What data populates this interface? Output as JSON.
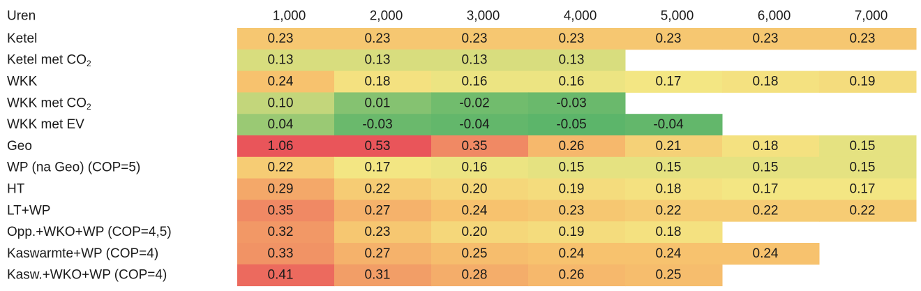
{
  "chart_data": {
    "type": "heatmap",
    "corner_label": "Uren",
    "columns": [
      "1,000",
      "2,000",
      "3,000",
      "4,000",
      "5,000",
      "6,000",
      "7,000"
    ],
    "rows": [
      {
        "label": "Ketel",
        "sub": "",
        "values": [
          "0.23",
          "0.23",
          "0.23",
          "0.23",
          "0.23",
          "0.23",
          "0.23"
        ]
      },
      {
        "label": "Ketel met CO",
        "sub": "2",
        "values": [
          "0.13",
          "0.13",
          "0.13",
          "0.13",
          null,
          null,
          null
        ]
      },
      {
        "label": "WKK",
        "sub": "",
        "values": [
          "0.24",
          "0.18",
          "0.16",
          "0.16",
          "0.17",
          "0.18",
          "0.19"
        ]
      },
      {
        "label": "WKK met CO",
        "sub": "2",
        "values": [
          "0.10",
          "0.01",
          "-0.02",
          "-0.03",
          null,
          null,
          null
        ]
      },
      {
        "label": "WKK met EV",
        "sub": "",
        "values": [
          "0.04",
          "-0.03",
          "-0.04",
          "-0.05",
          "-0.04",
          null,
          null
        ]
      },
      {
        "label": "Geo",
        "sub": "",
        "values": [
          "1.06",
          "0.53",
          "0.35",
          "0.26",
          "0.21",
          "0.18",
          "0.15"
        ]
      },
      {
        "label": "WP (na Geo)  (COP=5)",
        "sub": "",
        "values": [
          "0.22",
          "0.17",
          "0.16",
          "0.15",
          "0.15",
          "0.15",
          "0.15"
        ]
      },
      {
        "label": "HT",
        "sub": "",
        "values": [
          "0.29",
          "0.22",
          "0.20",
          "0.19",
          "0.18",
          "0.17",
          "0.17"
        ]
      },
      {
        "label": "LT+WP",
        "sub": "",
        "values": [
          "0.35",
          "0.27",
          "0.24",
          "0.23",
          "0.22",
          "0.22",
          "0.22"
        ]
      },
      {
        "label": "Opp.+WKO+WP  (COP=4,5)",
        "sub": "",
        "values": [
          "0.32",
          "0.23",
          "0.20",
          "0.19",
          "0.18",
          null,
          null
        ]
      },
      {
        "label": "Kaswarmte+WP (COP=4)",
        "sub": "",
        "values": [
          "0.33",
          "0.27",
          "0.25",
          "0.24",
          "0.24",
          "0.24",
          null
        ]
      },
      {
        "label": "Kasw.+WKO+WP (COP=4)",
        "sub": "",
        "values": [
          "0.41",
          "0.31",
          "0.28",
          "0.26",
          "0.25",
          null,
          null
        ]
      }
    ],
    "color_scale": {
      "low": "#5cb56a",
      "mid": "#f3e683",
      "high": "#e9555a"
    }
  }
}
